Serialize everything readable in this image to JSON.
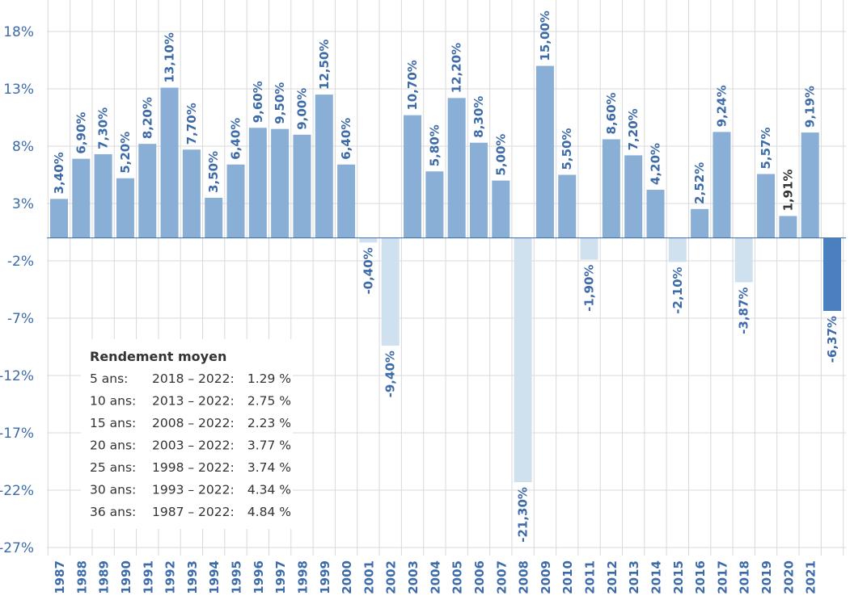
{
  "chart_data": {
    "type": "bar",
    "title": "",
    "xlabel": "",
    "ylabel": "",
    "ylim": [
      -27,
      20
    ],
    "yticks": [
      18,
      13,
      8,
      3,
      -2,
      -7,
      -12,
      -17,
      -22,
      -27
    ],
    "ytick_labels": [
      "18%",
      "13%",
      "8%",
      "3%",
      "-2%",
      "-7%",
      "-12%",
      "-17%",
      "-22%",
      "-27%"
    ],
    "grid": true,
    "categories": [
      "1987",
      "1988",
      "1989",
      "1990",
      "1991",
      "1992",
      "1993",
      "1994",
      "1995",
      "1996",
      "1997",
      "1998",
      "1999",
      "2000",
      "2001",
      "2002",
      "2003",
      "2004",
      "2005",
      "2006",
      "2007",
      "2008",
      "2009",
      "2010",
      "2011",
      "2012",
      "2013",
      "2014",
      "2015",
      "2016",
      "2017",
      "2018",
      "2019",
      "2020",
      "2021",
      ""
    ],
    "values": [
      3.4,
      6.9,
      7.3,
      5.2,
      8.2,
      13.1,
      7.7,
      3.5,
      6.4,
      9.6,
      9.5,
      9.0,
      12.5,
      6.4,
      -0.4,
      -9.4,
      10.7,
      5.8,
      12.2,
      8.3,
      5.0,
      -21.3,
      15.0,
      5.5,
      -1.9,
      8.6,
      7.2,
      4.2,
      -2.1,
      2.52,
      9.24,
      -3.87,
      5.57,
      1.91,
      9.19,
      -6.37
    ],
    "data_labels": [
      "3,40%",
      "6,90%",
      "7,30%",
      "5,20%",
      "8,20%",
      "13,10%",
      "7,70%",
      "3,50%",
      "6,40%",
      "9,60%",
      "9,50%",
      "9,00%",
      "12,50%",
      "6,40%",
      "-0,40%",
      "-9,40%",
      "10,70%",
      "5,80%",
      "12,20%",
      "8,30%",
      "5,00%",
      "-21,30%",
      "15,00%",
      "5,50%",
      "-1,90%",
      "8,60%",
      "7,20%",
      "4,20%",
      "-2,10%",
      "2,52%",
      "9,24%",
      "-3,87%",
      "5,57%",
      "1,91%",
      "9,19%",
      "-6,37%"
    ],
    "colors": {
      "positive": "#8aafd6",
      "negative": "#cfe0ef",
      "last": "#4a7fc0",
      "label": "#3d6aa8",
      "grid": "#d9d9d9"
    },
    "legend": {
      "title": "Rendement moyen",
      "placement": "bottom-left",
      "rows": [
        {
          "period": "5 ans:",
          "range": "2018 – 2022:",
          "value": "1.29 %"
        },
        {
          "period": "10 ans:",
          "range": "2013 – 2022:",
          "value": "2.75 %"
        },
        {
          "period": "15 ans:",
          "range": "2008 – 2022:",
          "value": "2.23 %"
        },
        {
          "period": "20 ans:",
          "range": "2003 – 2022:",
          "value": "3.77 %"
        },
        {
          "period": "25 ans:",
          "range": "1998 – 2022:",
          "value": "3.74 %"
        },
        {
          "period": "30 ans:",
          "range": "1993 – 2022:",
          "value": "4.34 %"
        },
        {
          "period": "36 ans:",
          "range": "1987 – 2022:",
          "value": "4.84 %"
        }
      ]
    }
  }
}
